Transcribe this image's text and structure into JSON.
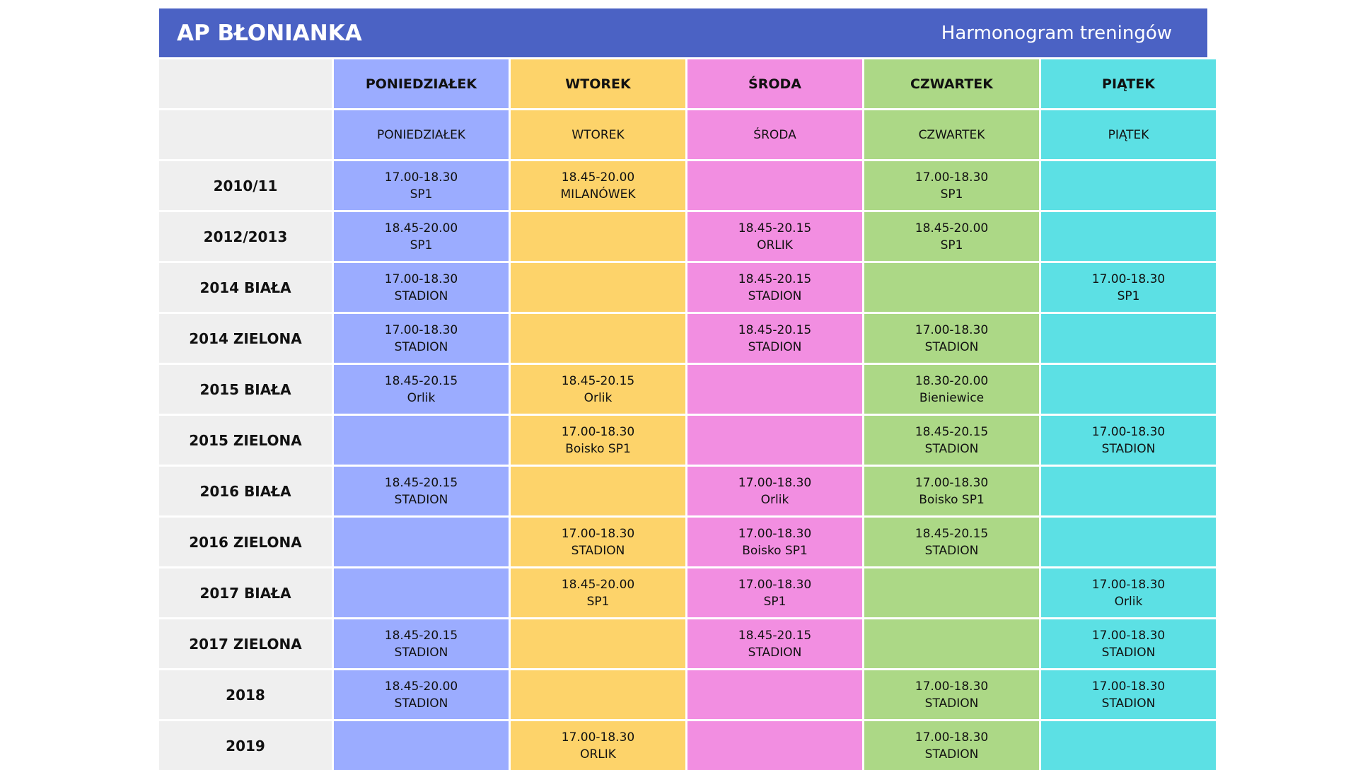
{
  "header": {
    "club_name": "AP BŁONIANKA",
    "title": "Harmonogram treningów"
  },
  "colors": {
    "header_bg": "#4b62c4",
    "row_label_bg": "#efefef",
    "days": [
      "#9bacff",
      "#fdd36a",
      "#f28ee1",
      "#acd886",
      "#5ce0e4"
    ]
  },
  "days_bold": [
    "PONIEDZIAŁEK",
    "WTOREK",
    "ŚRODA",
    "CZWARTEK",
    "PIĄTEK"
  ],
  "days_plain": [
    "PONIEDZIAŁEK",
    "WTOREK",
    "ŚRODA",
    "CZWARTEK",
    "PIĄTEK"
  ],
  "rows": [
    {
      "label": "2010/11",
      "slots": [
        {
          "time": "17.00-18.30",
          "place": "SP1"
        },
        {
          "time": "18.45-20.00",
          "place": "MILANÓWEK"
        },
        {
          "time": "",
          "place": ""
        },
        {
          "time": "17.00-18.30",
          "place": "SP1"
        },
        {
          "time": "",
          "place": ""
        }
      ]
    },
    {
      "label": "2012/2013",
      "slots": [
        {
          "time": "18.45-20.00",
          "place": "SP1"
        },
        {
          "time": "",
          "place": ""
        },
        {
          "time": "18.45-20.15",
          "place": "ORLIK"
        },
        {
          "time": "18.45-20.00",
          "place": "SP1"
        },
        {
          "time": "",
          "place": ""
        }
      ]
    },
    {
      "label": "2014 BIAŁA",
      "slots": [
        {
          "time": "17.00-18.30",
          "place": "STADION"
        },
        {
          "time": "",
          "place": ""
        },
        {
          "time": "18.45-20.15",
          "place": "STADION"
        },
        {
          "time": "",
          "place": ""
        },
        {
          "time": "17.00-18.30",
          "place": "SP1"
        }
      ]
    },
    {
      "label": "2014 ZIELONA",
      "slots": [
        {
          "time": "17.00-18.30",
          "place": "STADION"
        },
        {
          "time": "",
          "place": ""
        },
        {
          "time": "18.45-20.15",
          "place": "STADION"
        },
        {
          "time": "17.00-18.30",
          "place": "STADION"
        },
        {
          "time": "",
          "place": ""
        }
      ]
    },
    {
      "label": "2015 BIAŁA",
      "slots": [
        {
          "time": "18.45-20.15",
          "place": "Orlik"
        },
        {
          "time": "18.45-20.15",
          "place": "Orlik"
        },
        {
          "time": "",
          "place": ""
        },
        {
          "time": "18.30-20.00",
          "place": "Bieniewice"
        },
        {
          "time": "",
          "place": ""
        }
      ]
    },
    {
      "label": "2015 ZIELONA",
      "slots": [
        {
          "time": "",
          "place": ""
        },
        {
          "time": "17.00-18.30",
          "place": "Boisko SP1"
        },
        {
          "time": "",
          "place": ""
        },
        {
          "time": "18.45-20.15",
          "place": "STADION"
        },
        {
          "time": "17.00-18.30",
          "place": "STADION"
        }
      ]
    },
    {
      "label": "2016 BIAŁA",
      "slots": [
        {
          "time": "18.45-20.15",
          "place": "STADION"
        },
        {
          "time": "",
          "place": ""
        },
        {
          "time": "17.00-18.30",
          "place": "Orlik"
        },
        {
          "time": "17.00-18.30",
          "place": "Boisko SP1"
        },
        {
          "time": "",
          "place": ""
        }
      ]
    },
    {
      "label": "2016 ZIELONA",
      "slots": [
        {
          "time": "",
          "place": ""
        },
        {
          "time": "17.00-18.30",
          "place": "STADION"
        },
        {
          "time": "17.00-18.30",
          "place": "Boisko SP1"
        },
        {
          "time": "18.45-20.15",
          "place": "STADION"
        },
        {
          "time": "",
          "place": ""
        }
      ]
    },
    {
      "label": "2017 BIAŁA",
      "slots": [
        {
          "time": "",
          "place": ""
        },
        {
          "time": "18.45-20.00",
          "place": "SP1"
        },
        {
          "time": "17.00-18.30",
          "place": "SP1"
        },
        {
          "time": "",
          "place": ""
        },
        {
          "time": "17.00-18.30",
          "place": "Orlik"
        }
      ]
    },
    {
      "label": "2017 ZIELONA",
      "slots": [
        {
          "time": "18.45-20.15",
          "place": "STADION"
        },
        {
          "time": "",
          "place": ""
        },
        {
          "time": "18.45-20.15",
          "place": "STADION"
        },
        {
          "time": "",
          "place": ""
        },
        {
          "time": "17.00-18.30",
          "place": "STADION"
        }
      ]
    },
    {
      "label": "2018",
      "slots": [
        {
          "time": "18.45-20.00",
          "place": "STADION"
        },
        {
          "time": "",
          "place": ""
        },
        {
          "time": "",
          "place": ""
        },
        {
          "time": "17.00-18.30",
          "place": "STADION"
        },
        {
          "time": "17.00-18.30",
          "place": "STADION"
        }
      ]
    },
    {
      "label": "2019",
      "slots": [
        {
          "time": "",
          "place": ""
        },
        {
          "time": "17.00-18.30",
          "place": "ORLIK"
        },
        {
          "time": "",
          "place": ""
        },
        {
          "time": "17.00-18.30",
          "place": "STADION"
        },
        {
          "time": "",
          "place": ""
        }
      ]
    }
  ]
}
